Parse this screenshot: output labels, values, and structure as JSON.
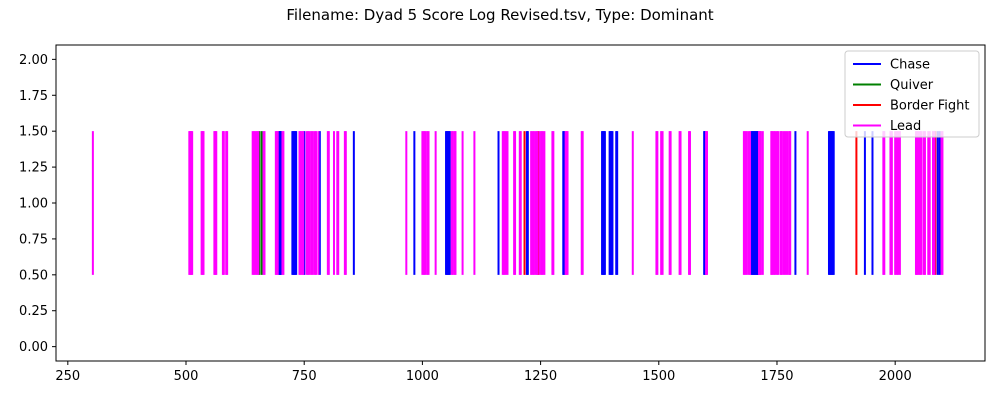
{
  "chart_data": {
    "type": "event",
    "title": "Filename: Dyad 5 Score Log Revised.tsv, Type: Dominant",
    "xlim": [
      225,
      2190
    ],
    "ylim": [
      -0.1,
      2.1
    ],
    "xticks": [
      250,
      500,
      750,
      1000,
      1250,
      1500,
      1750,
      2000
    ],
    "yticks": [
      0.0,
      0.25,
      0.5,
      0.75,
      1.0,
      1.25,
      1.5,
      1.75,
      2.0
    ],
    "ytick_labels": [
      "0.00",
      "0.25",
      "0.50",
      "0.75",
      "1.00",
      "1.25",
      "1.50",
      "1.75",
      "2.00"
    ],
    "legend_position": "top-right",
    "event_ymin": 0.5,
    "event_ymax": 1.5,
    "series": [
      {
        "name": "Chase",
        "color": "#0000ff",
        "x": [
          697,
          699,
          701,
          725,
          727,
          729,
          731,
          733,
          750,
          783,
          855,
          983,
          1050,
          1052,
          1054,
          1056,
          1058,
          1161,
          1221,
          1223,
          1298,
          1300,
          1380,
          1382,
          1384,
          1386,
          1396,
          1398,
          1400,
          1402,
          1410,
          1412,
          1596,
          1598,
          1696,
          1698,
          1700,
          1702,
          1704,
          1706,
          1708,
          1710,
          1789,
          1860,
          1862,
          1864,
          1866,
          1868,
          1870,
          1936,
          1952,
          2090,
          2094
        ]
      },
      {
        "name": "Quiver",
        "color": "#008000",
        "x": [
          655,
          660
        ]
      },
      {
        "name": "Border Fight",
        "color": "#ff0000",
        "x": [
          1216,
          1245,
          1918,
          2085
        ]
      },
      {
        "name": "Lead",
        "color": "#ff00ff",
        "x": [
          303,
          507,
          509,
          511,
          513,
          533,
          535,
          537,
          560,
          562,
          564,
          578,
          580,
          585,
          587,
          641,
          644,
          647,
          650,
          653,
          664,
          666,
          690,
          692,
          694,
          704,
          706,
          740,
          742,
          745,
          748,
          755,
          758,
          761,
          765,
          768,
          772,
          775,
          780,
          800,
          802,
          813,
          820,
          822,
          836,
          838,
          966,
          1000,
          1003,
          1006,
          1010,
          1013,
          1028,
          1062,
          1064,
          1068,
          1070,
          1085,
          1110,
          1170,
          1173,
          1176,
          1180,
          1194,
          1196,
          1206,
          1208,
          1230,
          1233,
          1236,
          1240,
          1243,
          1248,
          1252,
          1254,
          1258,
          1275,
          1277,
          1303,
          1305,
          1307,
          1337,
          1339,
          1445,
          1495,
          1497,
          1505,
          1508,
          1523,
          1525,
          1544,
          1546,
          1564,
          1566,
          1600,
          1602,
          1680,
          1683,
          1686,
          1690,
          1693,
          1712,
          1714,
          1716,
          1720,
          1738,
          1740,
          1743,
          1746,
          1750,
          1753,
          1758,
          1760,
          1764,
          1768,
          1772,
          1776,
          1778,
          1815,
          1975,
          1977,
          1990,
          1993,
          2000,
          2003,
          2006,
          2010,
          2044,
          2046,
          2049,
          2052,
          2055,
          2060,
          2063,
          2070,
          2073,
          2080,
          2083,
          2098,
          2100
        ]
      }
    ]
  }
}
